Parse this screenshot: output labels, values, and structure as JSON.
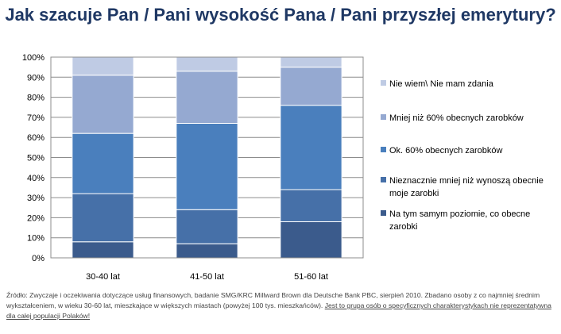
{
  "chart_data": {
    "type": "bar",
    "stacked": true,
    "title": "Jak szacuje Pan / Pani wysokość Pana / Pani przyszłej emerytury?",
    "categories": [
      "30-40 lat",
      "41-50 lat",
      "51-60 lat"
    ],
    "y_ticks": [
      "0%",
      "10%",
      "20%",
      "30%",
      "40%",
      "50%",
      "60%",
      "70%",
      "80%",
      "90%",
      "100%"
    ],
    "ylim": [
      0,
      100
    ],
    "grid": true,
    "legend_position": "right",
    "series": [
      {
        "name": "Na tym samym poziomie, co obecne zarobki",
        "values": [
          8,
          7,
          18
        ],
        "color": "#3b5b8c"
      },
      {
        "name": "Nieznacznie mniej niż wynoszą obecnie moje zarobki",
        "values": [
          24,
          17,
          16
        ],
        "color": "#4670a8"
      },
      {
        "name": "Ok. 60% obecnych zarobków",
        "values": [
          30,
          43,
          42
        ],
        "color": "#4a7fbd"
      },
      {
        "name": "Mniej niż 60% obecnych zarobków",
        "values": [
          29,
          26,
          19
        ],
        "color": "#95a9d1"
      },
      {
        "name": "Nie wiem\\ Nie mam zdania",
        "values": [
          9,
          7,
          5
        ],
        "color": "#bfcbe4"
      }
    ]
  },
  "source": {
    "text": "Źródło: Zwyczaje i oczekiwania dotyczące usług finansowych, badanie SMG/KRC Millward Brown dla Deutsche Bank PBC, sierpień 2010. Zbadano osoby z co najmniej średnim wykształceniem, w wieku 30-60 lat, mieszkające w większych miastach (powyżej 100 tys. mieszkańców).",
    "disclaimer": "Jest to grupa osób o specyficznych charakterystykach nie reprezentatywna dla całej populacji Polaków!"
  }
}
